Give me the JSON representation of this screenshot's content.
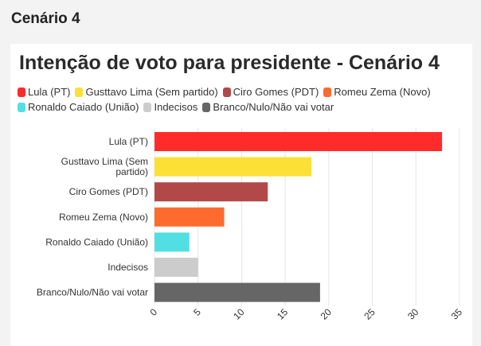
{
  "page": {
    "section_title": "Cenário 4"
  },
  "chart_data": {
    "type": "bar",
    "orientation": "horizontal",
    "title": "Intenção de voto para presidente - Cenário 4",
    "categories": [
      "Lula (PT)",
      "Gusttavo Lima (Sem partido)",
      "Ciro Gomes (PDT)",
      "Romeu Zema (Novo)",
      "Ronaldo Caiado (União)",
      "Indecisos",
      "Branco/Nulo/Não vai votar"
    ],
    "category_label_lines": [
      [
        "Lula (PT)"
      ],
      [
        "Gusttavo Lima (Sem",
        "partido)"
      ],
      [
        "Ciro Gomes (PDT)"
      ],
      [
        "Romeu Zema (Novo)"
      ],
      [
        "Ronaldo Caiado (União)"
      ],
      [
        "Indecisos"
      ],
      [
        "Branco/Nulo/Não vai votar"
      ]
    ],
    "values": [
      33,
      18,
      13,
      8,
      4,
      5,
      19
    ],
    "colors": [
      "#ff2b2b",
      "#fde036",
      "#b34848",
      "#ff6a2e",
      "#52dfe3",
      "#cccccc",
      "#666666"
    ],
    "legend_position": "top",
    "xlim": [
      0,
      35
    ],
    "x_ticks": [
      "0",
      "5",
      "10",
      "15",
      "20",
      "25",
      "30",
      "35"
    ],
    "grid": true,
    "xlabel": "",
    "ylabel": ""
  }
}
